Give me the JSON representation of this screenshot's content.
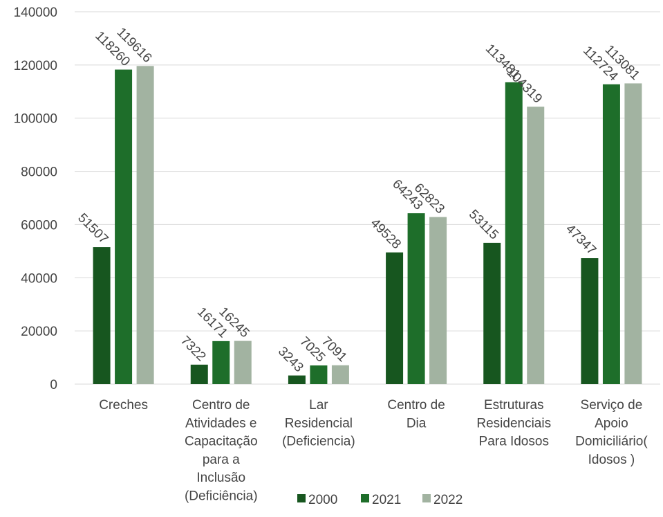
{
  "chart_data": {
    "type": "bar",
    "title": "",
    "xlabel": "",
    "ylabel": "",
    "ylim": [
      0,
      140000
    ],
    "yticks": [
      "0",
      "20000",
      "40000",
      "60000",
      "80000",
      "100000",
      "120000",
      "140000"
    ],
    "grid": true,
    "legend_position": "bottom",
    "categories": [
      [
        "Creches"
      ],
      [
        "Centro de",
        "Atividades e",
        "Capacitação",
        "para a",
        "Inclusão",
        "(Deficiência)"
      ],
      [
        "Lar",
        "Residencial",
        "(Deficiencia)"
      ],
      [
        "Centro de",
        "Dia"
      ],
      [
        "Estruturas",
        "Residenciais",
        "Para Idosos"
      ],
      [
        "Serviço de",
        "Apoio",
        "Domiciliário(",
        "Idosos )"
      ]
    ],
    "series": [
      {
        "name": "2000",
        "color": "#17561f",
        "values": [
          51507,
          7322,
          3243,
          49528,
          53115,
          47347
        ]
      },
      {
        "name": "2021",
        "color": "#1e6e2a",
        "values": [
          118260,
          16171,
          7025,
          64243,
          113481,
          112724
        ]
      },
      {
        "name": "2022",
        "color": "#a2b3a1",
        "values": [
          119616,
          16245,
          7091,
          62823,
          104319,
          113081
        ]
      }
    ]
  }
}
